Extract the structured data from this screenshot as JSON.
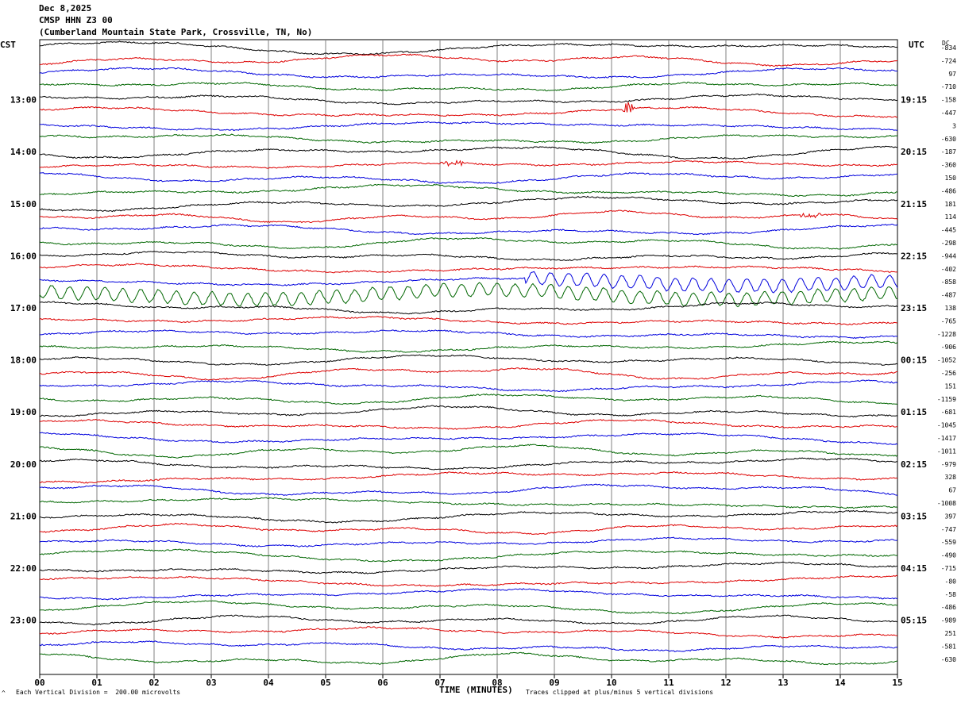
{
  "header": {
    "date": "Dec 8,2025",
    "channel": "CMSP HHN Z3 00",
    "station": "(Cumberland Mountain State Park, Crossville, TN, No)"
  },
  "left_zone": "CST",
  "right_zone": "UTC",
  "dc_label": "DC",
  "footer": {
    "scale_note": "Each Vertical Division =  200.00 microvolts",
    "clip_note": "Traces clipped at plus/minus 5 vertical divisions",
    "corner_mark": "^"
  },
  "colors": {
    "black": "#000000",
    "red": "#dd0000",
    "blue": "#0000dd",
    "green": "#006600",
    "grid": "#808080"
  },
  "chart_data": {
    "type": "line",
    "title": "",
    "xlabel": "TIME (MINUTES)",
    "x_ticks": [
      "00",
      "01",
      "02",
      "03",
      "04",
      "05",
      "06",
      "07",
      "08",
      "09",
      "10",
      "11",
      "12",
      "13",
      "14",
      "15"
    ],
    "xlim": [
      0,
      15
    ],
    "trace_color_cycle": [
      "black",
      "red",
      "blue",
      "green"
    ],
    "left_hour_labels": [
      {
        "line": 4,
        "label": "13:00"
      },
      {
        "line": 8,
        "label": "14:00"
      },
      {
        "line": 12,
        "label": "15:00"
      },
      {
        "line": 16,
        "label": "16:00"
      },
      {
        "line": 20,
        "label": "17:00"
      },
      {
        "line": 24,
        "label": "18:00"
      },
      {
        "line": 28,
        "label": "19:00"
      },
      {
        "line": 32,
        "label": "20:00"
      },
      {
        "line": 36,
        "label": "21:00"
      },
      {
        "line": 40,
        "label": "22:00"
      },
      {
        "line": 44,
        "label": "23:00"
      }
    ],
    "right_hour_labels": [
      {
        "line": 4,
        "label": "19:15"
      },
      {
        "line": 8,
        "label": "20:15"
      },
      {
        "line": 12,
        "label": "21:15"
      },
      {
        "line": 16,
        "label": "22:15"
      },
      {
        "line": 20,
        "label": "23:15"
      },
      {
        "line": 24,
        "label": "00:15"
      },
      {
        "line": 28,
        "label": "01:15"
      },
      {
        "line": 32,
        "label": "02:15"
      },
      {
        "line": 36,
        "label": "03:15"
      },
      {
        "line": 40,
        "label": "04:15"
      },
      {
        "line": 44,
        "label": "05:15"
      }
    ],
    "dc_offsets": [
      -834,
      -724,
      97,
      -710,
      -158,
      -447,
      3,
      -630,
      -187,
      -360,
      150,
      -486,
      181,
      114,
      -445,
      -298,
      -944,
      -402,
      -858,
      -487,
      138,
      -765,
      -1228,
      -906,
      -1052,
      -256,
      151,
      -1159,
      -681,
      -1045,
      -1417,
      -1011,
      -979,
      328,
      67,
      -1008,
      397,
      -747,
      -559,
      -490,
      -715,
      -80,
      -58,
      -486,
      -989,
      251,
      -581,
      -630
    ],
    "lines": 48,
    "events": [
      {
        "line": 5,
        "minute": 10.3,
        "kind": "spike"
      },
      {
        "line": 9,
        "minute": 7.2,
        "kind": "burst"
      },
      {
        "line": 13,
        "minute": 13.5,
        "kind": "burst"
      },
      {
        "line": 18,
        "minute_start": 8.5,
        "minute_end": 15.0,
        "kind": "oscillation"
      },
      {
        "line": 19,
        "minute_start": 0.0,
        "minute_end": 15.0,
        "kind": "oscillation"
      }
    ]
  }
}
